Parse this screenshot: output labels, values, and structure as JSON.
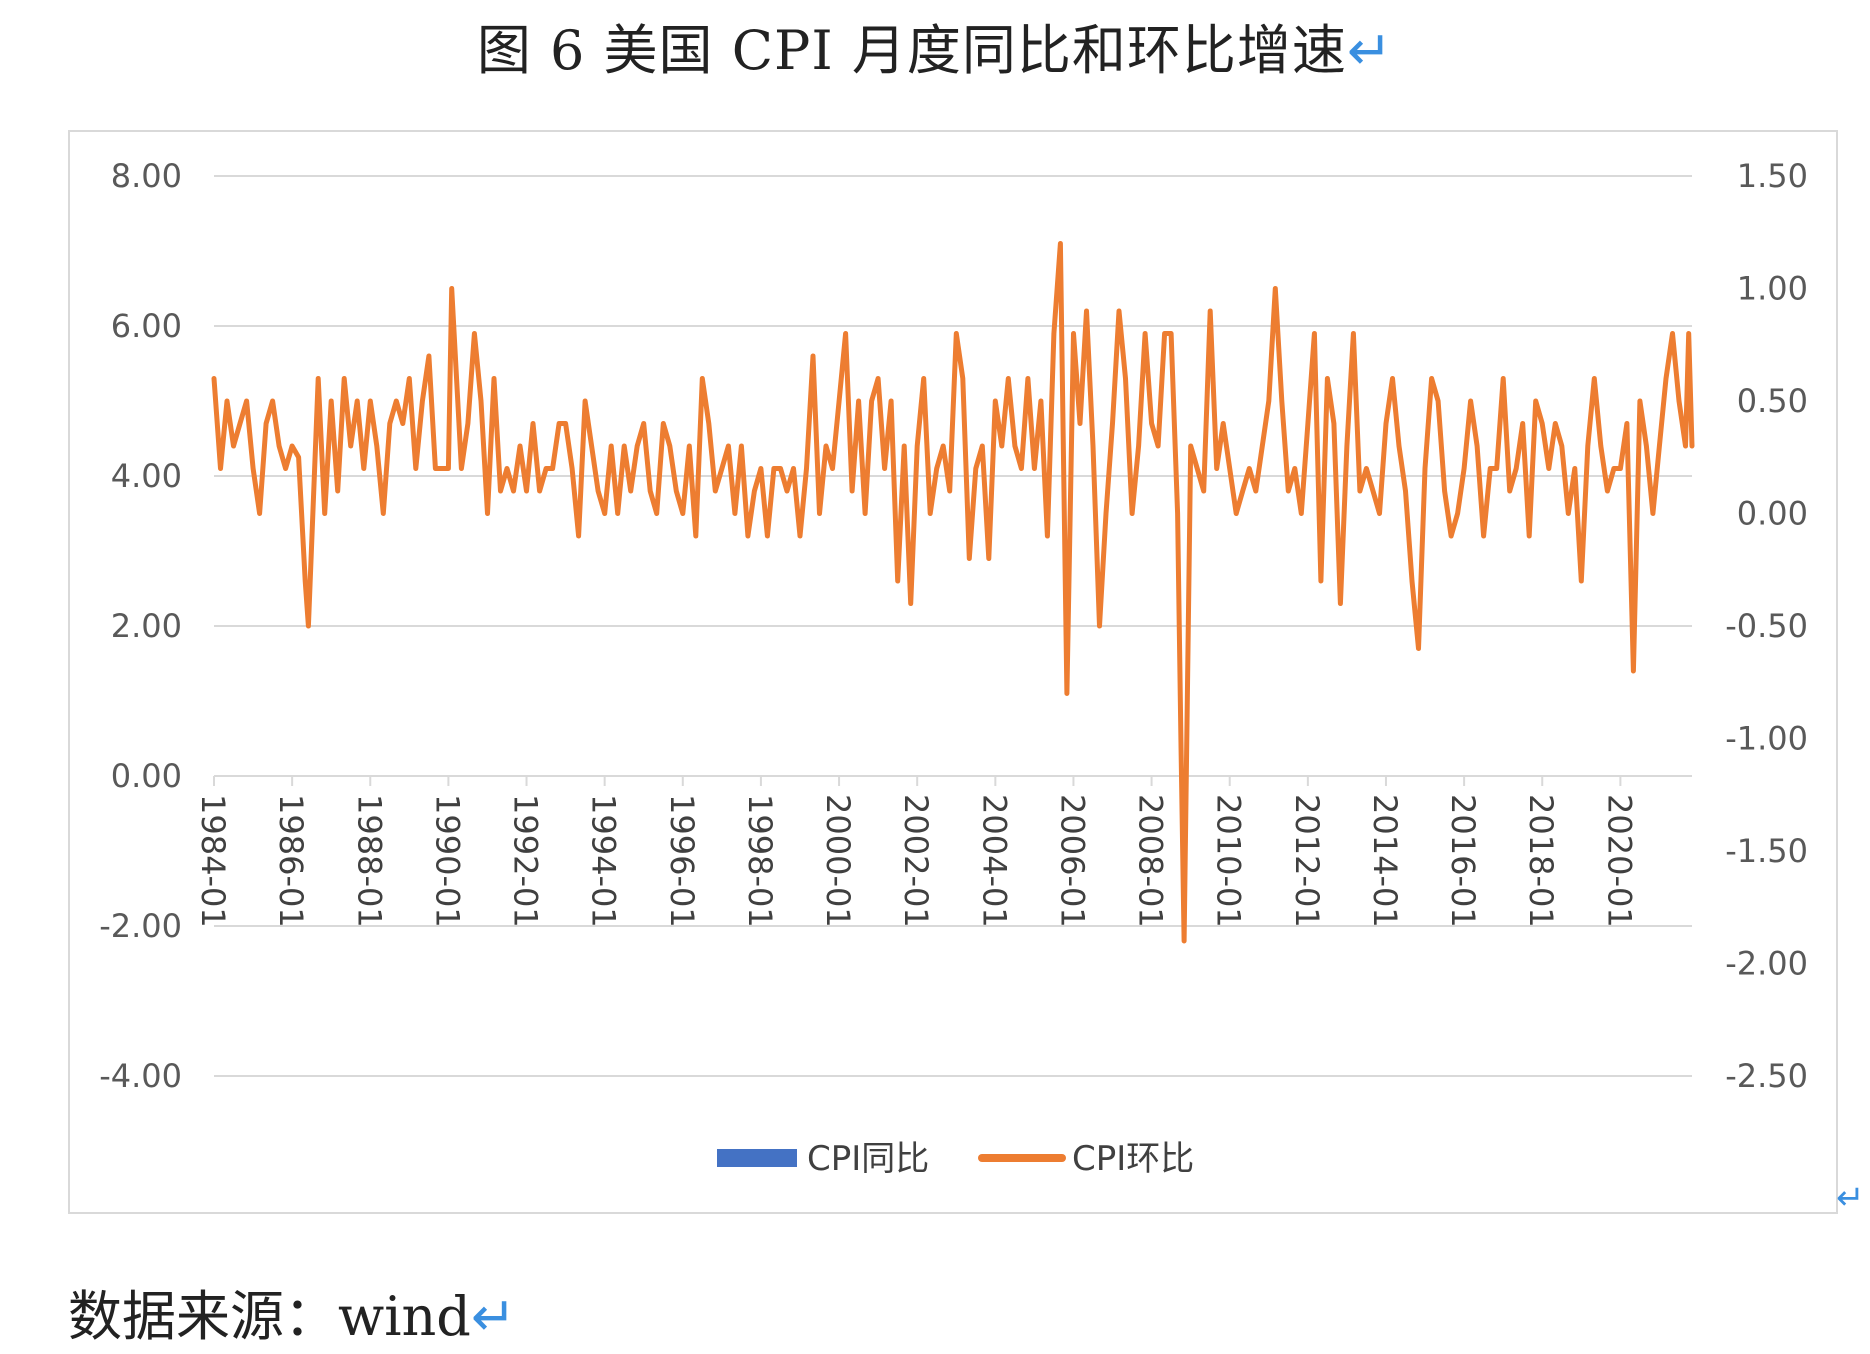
{
  "title": "图 6 美国 CPI 月度同比和环比增速",
  "return_glyph": "↵",
  "source": "数据来源：wind",
  "colors": {
    "yoy": "#4472c4",
    "mom": "#ed7d31",
    "grid": "#d9d9d9",
    "axis_text": "#595959"
  },
  "chart_data": {
    "type": "line",
    "title": "",
    "left_axis": {
      "ticks": [
        "8.00",
        "6.00",
        "4.00",
        "2.00",
        "0.00",
        "-2.00",
        "-4.00"
      ],
      "ylim": [
        -4,
        8
      ]
    },
    "right_axis": {
      "ticks": [
        "1.50",
        "1.00",
        "0.50",
        "0.00",
        "-0.50",
        "-1.00",
        "-1.50",
        "-2.00",
        "-2.50"
      ],
      "ylim": [
        -2.5,
        1.5
      ]
    },
    "x_ticks": [
      "1984-01",
      "1986-01",
      "1988-01",
      "1990-01",
      "1992-01",
      "1994-01",
      "1996-01",
      "1998-01",
      "2000-01",
      "2002-01",
      "2004-01",
      "2006-01",
      "2008-01",
      "2010-01",
      "2012-01",
      "2014-01",
      "2016-01",
      "2018-01",
      "2020-01"
    ],
    "x_range": [
      "1984-01",
      "2021-11"
    ],
    "legend": [
      "CPI同比",
      "CPI环比"
    ],
    "legend_position": "bottom",
    "grid": true,
    "series": [
      {
        "name": "CPI同比",
        "axis": "left",
        "values": []
      },
      {
        "name": "CPI环比",
        "axis": "right",
        "points": [
          [
            "1984-01",
            0.6
          ],
          [
            "1984-03",
            0.2
          ],
          [
            "1984-05",
            0.5
          ],
          [
            "1984-07",
            0.3
          ],
          [
            "1984-09",
            0.4
          ],
          [
            "1984-11",
            0.5
          ],
          [
            "1985-01",
            0.2
          ],
          [
            "1985-03",
            0.0
          ],
          [
            "1985-05",
            0.4
          ],
          [
            "1985-07",
            0.5
          ],
          [
            "1985-09",
            0.3
          ],
          [
            "1985-11",
            0.2
          ],
          [
            "1986-01",
            0.3
          ],
          [
            "1986-03",
            0.25
          ],
          [
            "1986-05",
            -0.3
          ],
          [
            "1986-06",
            -0.5
          ],
          [
            "1986-09",
            0.6
          ],
          [
            "1986-11",
            0.0
          ],
          [
            "1987-01",
            0.5
          ],
          [
            "1987-03",
            0.1
          ],
          [
            "1987-05",
            0.6
          ],
          [
            "1987-07",
            0.3
          ],
          [
            "1987-09",
            0.5
          ],
          [
            "1987-11",
            0.2
          ],
          [
            "1988-01",
            0.5
          ],
          [
            "1988-03",
            0.3
          ],
          [
            "1988-05",
            0.0
          ],
          [
            "1988-07",
            0.4
          ],
          [
            "1988-09",
            0.5
          ],
          [
            "1988-11",
            0.4
          ],
          [
            "1989-01",
            0.6
          ],
          [
            "1989-03",
            0.2
          ],
          [
            "1989-05",
            0.5
          ],
          [
            "1989-07",
            0.7
          ],
          [
            "1989-09",
            0.2
          ],
          [
            "1989-11",
            0.2
          ],
          [
            "1990-01",
            0.2
          ],
          [
            "1990-02",
            1.0
          ],
          [
            "1990-05",
            0.2
          ],
          [
            "1990-07",
            0.4
          ],
          [
            "1990-09",
            0.8
          ],
          [
            "1990-11",
            0.5
          ],
          [
            "1991-01",
            0.0
          ],
          [
            "1991-03",
            0.6
          ],
          [
            "1991-05",
            0.1
          ],
          [
            "1991-07",
            0.2
          ],
          [
            "1991-09",
            0.1
          ],
          [
            "1991-11",
            0.3
          ],
          [
            "1992-01",
            0.1
          ],
          [
            "1992-03",
            0.4
          ],
          [
            "1992-05",
            0.1
          ],
          [
            "1992-07",
            0.2
          ],
          [
            "1992-09",
            0.2
          ],
          [
            "1992-11",
            0.4
          ],
          [
            "1993-01",
            0.4
          ],
          [
            "1993-03",
            0.2
          ],
          [
            "1993-05",
            -0.1
          ],
          [
            "1993-07",
            0.5
          ],
          [
            "1993-09",
            0.3
          ],
          [
            "1993-11",
            0.1
          ],
          [
            "1994-01",
            0.0
          ],
          [
            "1994-03",
            0.3
          ],
          [
            "1994-05",
            0.0
          ],
          [
            "1994-07",
            0.3
          ],
          [
            "1994-09",
            0.1
          ],
          [
            "1994-11",
            0.3
          ],
          [
            "1995-01",
            0.4
          ],
          [
            "1995-03",
            0.1
          ],
          [
            "1995-05",
            0.0
          ],
          [
            "1995-07",
            0.4
          ],
          [
            "1995-09",
            0.3
          ],
          [
            "1995-11",
            0.1
          ],
          [
            "1996-01",
            0.0
          ],
          [
            "1996-03",
            0.3
          ],
          [
            "1996-05",
            -0.1
          ],
          [
            "1996-07",
            0.6
          ],
          [
            "1996-09",
            0.4
          ],
          [
            "1996-11",
            0.1
          ],
          [
            "1997-01",
            0.2
          ],
          [
            "1997-03",
            0.3
          ],
          [
            "1997-05",
            0.0
          ],
          [
            "1997-07",
            0.3
          ],
          [
            "1997-09",
            -0.1
          ],
          [
            "1997-11",
            0.1
          ],
          [
            "1998-01",
            0.2
          ],
          [
            "1998-03",
            -0.1
          ],
          [
            "1998-05",
            0.2
          ],
          [
            "1998-07",
            0.2
          ],
          [
            "1998-09",
            0.1
          ],
          [
            "1998-11",
            0.2
          ],
          [
            "1999-01",
            -0.1
          ],
          [
            "1999-03",
            0.2
          ],
          [
            "1999-05",
            0.7
          ],
          [
            "1999-07",
            0.0
          ],
          [
            "1999-09",
            0.3
          ],
          [
            "1999-11",
            0.2
          ],
          [
            "2000-01",
            0.5
          ],
          [
            "2000-03",
            0.8
          ],
          [
            "2000-05",
            0.1
          ],
          [
            "2000-07",
            0.5
          ],
          [
            "2000-09",
            0.0
          ],
          [
            "2000-11",
            0.5
          ],
          [
            "2001-01",
            0.6
          ],
          [
            "2001-03",
            0.2
          ],
          [
            "2001-05",
            0.5
          ],
          [
            "2001-07",
            -0.3
          ],
          [
            "2001-09",
            0.3
          ],
          [
            "2001-11",
            -0.4
          ],
          [
            "2002-01",
            0.3
          ],
          [
            "2002-03",
            0.6
          ],
          [
            "2002-05",
            0.0
          ],
          [
            "2002-07",
            0.2
          ],
          [
            "2002-09",
            0.3
          ],
          [
            "2002-11",
            0.1
          ],
          [
            "2003-01",
            0.8
          ],
          [
            "2003-03",
            0.6
          ],
          [
            "2003-05",
            -0.2
          ],
          [
            "2003-07",
            0.2
          ],
          [
            "2003-09",
            0.3
          ],
          [
            "2003-11",
            -0.2
          ],
          [
            "2004-01",
            0.5
          ],
          [
            "2004-03",
            0.3
          ],
          [
            "2004-05",
            0.6
          ],
          [
            "2004-07",
            0.3
          ],
          [
            "2004-09",
            0.2
          ],
          [
            "2004-11",
            0.6
          ],
          [
            "2005-01",
            0.2
          ],
          [
            "2005-03",
            0.5
          ],
          [
            "2005-05",
            -0.1
          ],
          [
            "2005-07",
            0.8
          ],
          [
            "2005-09",
            1.2
          ],
          [
            "2005-11",
            -0.8
          ],
          [
            "2006-01",
            0.8
          ],
          [
            "2006-03",
            0.4
          ],
          [
            "2006-05",
            0.9
          ],
          [
            "2006-07",
            0.3
          ],
          [
            "2006-09",
            -0.5
          ],
          [
            "2006-11",
            0.0
          ],
          [
            "2007-01",
            0.4
          ],
          [
            "2007-03",
            0.9
          ],
          [
            "2007-05",
            0.6
          ],
          [
            "2007-07",
            0.0
          ],
          [
            "2007-09",
            0.3
          ],
          [
            "2007-11",
            0.8
          ],
          [
            "2008-01",
            0.4
          ],
          [
            "2008-03",
            0.3
          ],
          [
            "2008-05",
            0.8
          ],
          [
            "2008-07",
            0.8
          ],
          [
            "2008-09",
            0.0
          ],
          [
            "2008-10",
            -1.0
          ],
          [
            "2008-11",
            -1.9
          ],
          [
            "2008-12",
            -0.8
          ],
          [
            "2009-01",
            0.3
          ],
          [
            "2009-03",
            0.2
          ],
          [
            "2009-05",
            0.1
          ],
          [
            "2009-07",
            0.9
          ],
          [
            "2009-09",
            0.2
          ],
          [
            "2009-11",
            0.4
          ],
          [
            "2010-01",
            0.2
          ],
          [
            "2010-03",
            0.0
          ],
          [
            "2010-05",
            0.1
          ],
          [
            "2010-07",
            0.2
          ],
          [
            "2010-09",
            0.1
          ],
          [
            "2010-11",
            0.3
          ],
          [
            "2011-01",
            0.5
          ],
          [
            "2011-03",
            1.0
          ],
          [
            "2011-05",
            0.5
          ],
          [
            "2011-07",
            0.1
          ],
          [
            "2011-09",
            0.2
          ],
          [
            "2011-11",
            0.0
          ],
          [
            "2012-01",
            0.4
          ],
          [
            "2012-03",
            0.8
          ],
          [
            "2012-05",
            -0.3
          ],
          [
            "2012-07",
            0.6
          ],
          [
            "2012-09",
            0.4
          ],
          [
            "2012-11",
            -0.4
          ],
          [
            "2013-01",
            0.3
          ],
          [
            "2013-03",
            0.8
          ],
          [
            "2013-05",
            0.1
          ],
          [
            "2013-07",
            0.2
          ],
          [
            "2013-09",
            0.1
          ],
          [
            "2013-11",
            0.0
          ],
          [
            "2014-01",
            0.4
          ],
          [
            "2014-03",
            0.6
          ],
          [
            "2014-05",
            0.3
          ],
          [
            "2014-07",
            0.1
          ],
          [
            "2014-09",
            -0.3
          ],
          [
            "2014-11",
            -0.6
          ],
          [
            "2015-01",
            0.2
          ],
          [
            "2015-03",
            0.6
          ],
          [
            "2015-05",
            0.5
          ],
          [
            "2015-07",
            0.1
          ],
          [
            "2015-09",
            -0.1
          ],
          [
            "2015-11",
            0.0
          ],
          [
            "2016-01",
            0.2
          ],
          [
            "2016-03",
            0.5
          ],
          [
            "2016-05",
            0.3
          ],
          [
            "2016-07",
            -0.1
          ],
          [
            "2016-09",
            0.2
          ],
          [
            "2016-11",
            0.2
          ],
          [
            "2017-01",
            0.6
          ],
          [
            "2017-03",
            0.1
          ],
          [
            "2017-05",
            0.2
          ],
          [
            "2017-07",
            0.4
          ],
          [
            "2017-09",
            -0.1
          ],
          [
            "2017-11",
            0.5
          ],
          [
            "2018-01",
            0.4
          ],
          [
            "2018-03",
            0.2
          ],
          [
            "2018-05",
            0.4
          ],
          [
            "2018-07",
            0.3
          ],
          [
            "2018-09",
            0.0
          ],
          [
            "2018-11",
            0.2
          ],
          [
            "2019-01",
            -0.3
          ],
          [
            "2019-03",
            0.3
          ],
          [
            "2019-05",
            0.6
          ],
          [
            "2019-07",
            0.3
          ],
          [
            "2019-09",
            0.1
          ],
          [
            "2019-11",
            0.2
          ],
          [
            "2020-01",
            0.2
          ],
          [
            "2020-03",
            0.4
          ],
          [
            "2020-05",
            -0.7
          ],
          [
            "2020-07",
            0.5
          ],
          [
            "2020-09",
            0.3
          ],
          [
            "2020-11",
            0.0
          ],
          [
            "2021-01",
            0.3
          ],
          [
            "2021-03",
            0.6
          ],
          [
            "2021-05",
            0.8
          ],
          [
            "2021-07",
            0.5
          ],
          [
            "2021-09",
            0.3
          ],
          [
            "2021-10",
            0.8
          ],
          [
            "2021-11",
            0.3
          ]
        ]
      }
    ]
  }
}
